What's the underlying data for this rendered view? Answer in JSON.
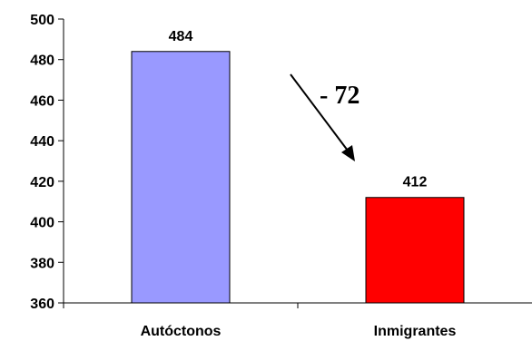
{
  "chart_data": {
    "type": "bar",
    "categories": [
      "Autóctonos",
      "Inmigrantes"
    ],
    "values": [
      484,
      412
    ],
    "data_labels": [
      "484",
      "412"
    ],
    "colors": [
      "#9999ff",
      "#ff0000"
    ],
    "ylim": [
      360,
      500
    ],
    "yticks": [
      360,
      380,
      400,
      420,
      440,
      460,
      480,
      500
    ],
    "grid": false,
    "legend": "none",
    "annotation": {
      "text": "- 72"
    }
  }
}
